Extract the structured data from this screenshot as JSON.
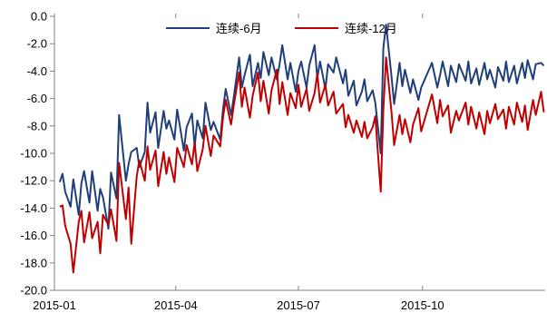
{
  "chart_data": {
    "type": "line",
    "title": "",
    "xlabel": "",
    "ylabel": "",
    "ylim": [
      -20.0,
      0.0
    ],
    "yticks": [
      0.0,
      -2.0,
      -4.0,
      -6.0,
      -8.0,
      -10.0,
      -12.0,
      -14.0,
      -16.0,
      -18.0,
      -20.0
    ],
    "ytick_labels": [
      "0.0",
      "-2.0",
      "-4.0",
      "-6.0",
      "-8.0",
      "-10.0",
      "-12.0",
      "-14.0",
      "-16.0",
      "-18.0",
      "-20.0"
    ],
    "xlim": [
      "2015-01-01",
      "2015-12-31"
    ],
    "xticks": [
      "2015-01-01",
      "2015-04-01",
      "2015-07-01",
      "2015-10-01"
    ],
    "xtick_labels": [
      "2015-01",
      "2015-04",
      "2015-07",
      "2015-10"
    ],
    "grid": false,
    "legend": "top-center",
    "series": [
      {
        "name": "连续-6月",
        "color": "#1F3F7A",
        "points": [
          [
            "2015-01-05",
            -12.1
          ],
          [
            "2015-01-07",
            -11.5
          ],
          [
            "2015-01-09",
            -12.8
          ],
          [
            "2015-01-13",
            -13.9
          ],
          [
            "2015-01-15",
            -11.9
          ],
          [
            "2015-01-19",
            -14.5
          ],
          [
            "2015-01-21",
            -12.2
          ],
          [
            "2015-01-23",
            -11.3
          ],
          [
            "2015-01-27",
            -13.6
          ],
          [
            "2015-01-29",
            -11.3
          ],
          [
            "2015-02-02",
            -14.2
          ],
          [
            "2015-02-04",
            -12.6
          ],
          [
            "2015-02-06",
            -13.2
          ],
          [
            "2015-02-10",
            -15.5
          ],
          [
            "2015-02-12",
            -11.4
          ],
          [
            "2015-02-16",
            -13.3
          ],
          [
            "2015-02-18",
            -7.2
          ],
          [
            "2015-02-23",
            -12.0
          ],
          [
            "2015-02-25",
            -10.8
          ],
          [
            "2015-02-27",
            -9.9
          ],
          [
            "2015-03-03",
            -9.6
          ],
          [
            "2015-03-05",
            -11.0
          ],
          [
            "2015-03-09",
            -9.9
          ],
          [
            "2015-03-11",
            -6.3
          ],
          [
            "2015-03-13",
            -8.5
          ],
          [
            "2015-03-17",
            -7.0
          ],
          [
            "2015-03-19",
            -9.6
          ],
          [
            "2015-03-23",
            -6.9
          ],
          [
            "2015-03-25",
            -8.2
          ],
          [
            "2015-03-27",
            -7.6
          ],
          [
            "2015-03-31",
            -9.0
          ],
          [
            "2015-04-02",
            -6.8
          ],
          [
            "2015-04-07",
            -9.8
          ],
          [
            "2015-04-09",
            -8.1
          ],
          [
            "2015-04-13",
            -7.1
          ],
          [
            "2015-04-15",
            -9.5
          ],
          [
            "2015-04-17",
            -7.6
          ],
          [
            "2015-04-21",
            -8.9
          ],
          [
            "2015-04-23",
            -6.3
          ],
          [
            "2015-04-27",
            -8.3
          ],
          [
            "2015-04-29",
            -7.7
          ],
          [
            "2015-05-04",
            -9.0
          ],
          [
            "2015-05-06",
            -6.8
          ],
          [
            "2015-05-08",
            -5.3
          ],
          [
            "2015-05-12",
            -7.2
          ],
          [
            "2015-05-14",
            -5.9
          ],
          [
            "2015-05-18",
            -3.0
          ],
          [
            "2015-05-20",
            -5.2
          ],
          [
            "2015-05-22",
            -4.3
          ],
          [
            "2015-05-26",
            -2.8
          ],
          [
            "2015-05-28",
            -5.1
          ],
          [
            "2015-06-01",
            -3.4
          ],
          [
            "2015-06-03",
            -4.5
          ],
          [
            "2015-06-05",
            -2.6
          ],
          [
            "2015-06-09",
            -4.3
          ],
          [
            "2015-06-11",
            -3.0
          ],
          [
            "2015-06-15",
            -4.6
          ],
          [
            "2015-06-17",
            -3.5
          ],
          [
            "2015-06-19",
            -2.1
          ],
          [
            "2015-06-23",
            -4.6
          ],
          [
            "2015-06-25",
            -3.4
          ],
          [
            "2015-06-29",
            -5.5
          ],
          [
            "2015-07-01",
            -4.0
          ],
          [
            "2015-07-03",
            -3.3
          ],
          [
            "2015-07-07",
            -5.2
          ],
          [
            "2015-07-09",
            -3.6
          ],
          [
            "2015-07-13",
            -2.1
          ],
          [
            "2015-07-15",
            -4.5
          ],
          [
            "2015-07-17",
            -3.3
          ],
          [
            "2015-07-21",
            -5.3
          ],
          [
            "2015-07-23",
            -3.5
          ],
          [
            "2015-07-27",
            -4.1
          ],
          [
            "2015-07-29",
            -3.0
          ],
          [
            "2015-08-03",
            -4.9
          ],
          [
            "2015-08-05",
            -3.9
          ],
          [
            "2015-08-07",
            -5.8
          ],
          [
            "2015-08-11",
            -4.7
          ],
          [
            "2015-08-13",
            -6.5
          ],
          [
            "2015-08-17",
            -5.5
          ],
          [
            "2015-08-19",
            -4.6
          ],
          [
            "2015-08-21",
            -6.2
          ],
          [
            "2015-08-25",
            -5.4
          ],
          [
            "2015-08-27",
            -6.3
          ],
          [
            "2015-08-31",
            -10.0
          ],
          [
            "2015-09-02",
            -2.3
          ],
          [
            "2015-09-04",
            -0.6
          ],
          [
            "2015-09-08",
            -4.4
          ],
          [
            "2015-09-10",
            -6.4
          ],
          [
            "2015-09-14",
            -3.4
          ],
          [
            "2015-09-16",
            -5.1
          ],
          [
            "2015-09-18",
            -3.9
          ],
          [
            "2015-09-22",
            -5.6
          ],
          [
            "2015-09-24",
            -4.6
          ],
          [
            "2015-09-28",
            -6.1
          ],
          [
            "2015-09-30",
            -5.2
          ],
          [
            "2015-10-08",
            -3.4
          ],
          [
            "2015-10-12",
            -5.2
          ],
          [
            "2015-10-14",
            -4.3
          ],
          [
            "2015-10-16",
            -3.3
          ],
          [
            "2015-10-20",
            -5.1
          ],
          [
            "2015-10-22",
            -3.6
          ],
          [
            "2015-10-26",
            -4.8
          ],
          [
            "2015-10-28",
            -3.5
          ],
          [
            "2015-11-02",
            -4.7
          ],
          [
            "2015-11-04",
            -3.3
          ],
          [
            "2015-11-06",
            -4.9
          ],
          [
            "2015-11-10",
            -3.8
          ],
          [
            "2015-11-12",
            -5.0
          ],
          [
            "2015-11-16",
            -3.4
          ],
          [
            "2015-11-18",
            -4.6
          ],
          [
            "2015-11-20",
            -3.9
          ],
          [
            "2015-11-24",
            -5.2
          ],
          [
            "2015-11-26",
            -3.7
          ],
          [
            "2015-11-30",
            -4.7
          ],
          [
            "2015-12-02",
            -3.3
          ],
          [
            "2015-12-04",
            -4.8
          ],
          [
            "2015-12-08",
            -3.6
          ],
          [
            "2015-12-10",
            -4.9
          ],
          [
            "2015-12-14",
            -3.4
          ],
          [
            "2015-12-16",
            -4.5
          ],
          [
            "2015-12-18",
            -3.2
          ],
          [
            "2015-12-22",
            -4.6
          ],
          [
            "2015-12-24",
            -3.5
          ],
          [
            "2015-12-28",
            -3.4
          ],
          [
            "2015-12-30",
            -3.6
          ]
        ]
      },
      {
        "name": "连续-12月",
        "color": "#C00000",
        "points": [
          [
            "2015-01-05",
            -13.9
          ],
          [
            "2015-01-07",
            -13.8
          ],
          [
            "2015-01-09",
            -15.3
          ],
          [
            "2015-01-13",
            -16.6
          ],
          [
            "2015-01-15",
            -18.7
          ],
          [
            "2015-01-19",
            -15.0
          ],
          [
            "2015-01-21",
            -14.2
          ],
          [
            "2015-01-23",
            -16.5
          ],
          [
            "2015-01-27",
            -14.3
          ],
          [
            "2015-01-29",
            -16.2
          ],
          [
            "2015-02-02",
            -15.0
          ],
          [
            "2015-02-04",
            -17.3
          ],
          [
            "2015-02-06",
            -14.5
          ],
          [
            "2015-02-10",
            -15.2
          ],
          [
            "2015-02-12",
            -14.1
          ],
          [
            "2015-02-16",
            -16.4
          ],
          [
            "2015-02-18",
            -10.7
          ],
          [
            "2015-02-23",
            -14.8
          ],
          [
            "2015-02-25",
            -12.5
          ],
          [
            "2015-02-27",
            -16.6
          ],
          [
            "2015-03-03",
            -11.7
          ],
          [
            "2015-03-05",
            -10.5
          ],
          [
            "2015-03-09",
            -12.0
          ],
          [
            "2015-03-11",
            -9.5
          ],
          [
            "2015-03-13",
            -11.2
          ],
          [
            "2015-03-17",
            -9.8
          ],
          [
            "2015-03-19",
            -12.4
          ],
          [
            "2015-03-23",
            -9.9
          ],
          [
            "2015-03-25",
            -11.5
          ],
          [
            "2015-03-27",
            -10.3
          ],
          [
            "2015-03-31",
            -12.1
          ],
          [
            "2015-04-02",
            -9.6
          ],
          [
            "2015-04-07",
            -11.0
          ],
          [
            "2015-04-09",
            -9.4
          ],
          [
            "2015-04-13",
            -10.8
          ],
          [
            "2015-04-15",
            -9.2
          ],
          [
            "2015-04-17",
            -11.3
          ],
          [
            "2015-04-21",
            -9.7
          ],
          [
            "2015-04-23",
            -8.0
          ],
          [
            "2015-04-27",
            -10.2
          ],
          [
            "2015-04-29",
            -8.7
          ],
          [
            "2015-05-04",
            -9.5
          ],
          [
            "2015-05-06",
            -7.4
          ],
          [
            "2015-05-08",
            -6.1
          ],
          [
            "2015-05-12",
            -7.9
          ],
          [
            "2015-05-14",
            -6.5
          ],
          [
            "2015-05-18",
            -4.1
          ],
          [
            "2015-05-20",
            -6.6
          ],
          [
            "2015-05-22",
            -5.2
          ],
          [
            "2015-05-26",
            -7.4
          ],
          [
            "2015-05-28",
            -5.8
          ],
          [
            "2015-06-01",
            -4.1
          ],
          [
            "2015-06-03",
            -6.2
          ],
          [
            "2015-06-05",
            -4.7
          ],
          [
            "2015-06-09",
            -7.1
          ],
          [
            "2015-06-11",
            -5.4
          ],
          [
            "2015-06-15",
            -3.9
          ],
          [
            "2015-06-17",
            -6.4
          ],
          [
            "2015-06-19",
            -4.8
          ],
          [
            "2015-06-23",
            -7.2
          ],
          [
            "2015-06-25",
            -5.6
          ],
          [
            "2015-06-29",
            -6.7
          ],
          [
            "2015-07-01",
            -5.0
          ],
          [
            "2015-07-03",
            -6.6
          ],
          [
            "2015-07-07",
            -5.3
          ],
          [
            "2015-07-09",
            -6.9
          ],
          [
            "2015-07-13",
            -5.6
          ],
          [
            "2015-07-15",
            -4.2
          ],
          [
            "2015-07-17",
            -6.3
          ],
          [
            "2015-07-21",
            -5.0
          ],
          [
            "2015-07-23",
            -6.5
          ],
          [
            "2015-07-27",
            -5.5
          ],
          [
            "2015-07-29",
            -7.1
          ],
          [
            "2015-08-03",
            -6.4
          ],
          [
            "2015-08-05",
            -8.1
          ],
          [
            "2015-08-07",
            -7.2
          ],
          [
            "2015-08-11",
            -8.5
          ],
          [
            "2015-08-13",
            -7.6
          ],
          [
            "2015-08-17",
            -8.8
          ],
          [
            "2015-08-19",
            -7.7
          ],
          [
            "2015-08-21",
            -8.9
          ],
          [
            "2015-08-25",
            -8.1
          ],
          [
            "2015-08-27",
            -7.3
          ],
          [
            "2015-08-31",
            -12.8
          ],
          [
            "2015-09-02",
            -6.8
          ],
          [
            "2015-09-04",
            -3.0
          ],
          [
            "2015-09-08",
            -7.0
          ],
          [
            "2015-09-10",
            -9.4
          ],
          [
            "2015-09-14",
            -7.2
          ],
          [
            "2015-09-16",
            -8.6
          ],
          [
            "2015-09-18",
            -7.5
          ],
          [
            "2015-09-22",
            -9.2
          ],
          [
            "2015-09-24",
            -7.9
          ],
          [
            "2015-09-28",
            -6.7
          ],
          [
            "2015-09-30",
            -8.4
          ],
          [
            "2015-10-08",
            -5.7
          ],
          [
            "2015-10-12",
            -7.8
          ],
          [
            "2015-10-14",
            -6.1
          ],
          [
            "2015-10-16",
            -7.3
          ],
          [
            "2015-10-20",
            -6.5
          ],
          [
            "2015-10-22",
            -8.5
          ],
          [
            "2015-10-26",
            -6.9
          ],
          [
            "2015-10-28",
            -7.6
          ],
          [
            "2015-11-02",
            -6.3
          ],
          [
            "2015-11-04",
            -7.9
          ],
          [
            "2015-11-06",
            -6.6
          ],
          [
            "2015-11-10",
            -8.2
          ],
          [
            "2015-11-12",
            -7.0
          ],
          [
            "2015-11-16",
            -8.6
          ],
          [
            "2015-11-18",
            -6.9
          ],
          [
            "2015-11-20",
            -7.8
          ],
          [
            "2015-11-24",
            -6.4
          ],
          [
            "2015-11-26",
            -7.5
          ],
          [
            "2015-11-30",
            -6.8
          ],
          [
            "2015-12-02",
            -8.2
          ],
          [
            "2015-12-04",
            -6.6
          ],
          [
            "2015-12-08",
            -7.9
          ],
          [
            "2015-12-10",
            -6.3
          ],
          [
            "2015-12-14",
            -7.7
          ],
          [
            "2015-12-16",
            -6.5
          ],
          [
            "2015-12-18",
            -8.3
          ],
          [
            "2015-12-22",
            -6.1
          ],
          [
            "2015-12-24",
            -7.2
          ],
          [
            "2015-12-28",
            -5.5
          ],
          [
            "2015-12-30",
            -7.0
          ]
        ]
      }
    ]
  }
}
